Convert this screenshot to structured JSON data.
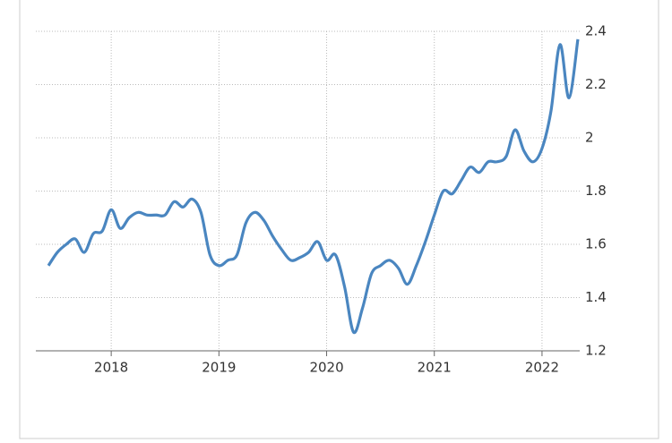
{
  "chart_data": {
    "type": "line",
    "x": [
      2017.417,
      2017.5,
      2017.583,
      2017.667,
      2017.75,
      2017.833,
      2017.917,
      2018,
      2018.083,
      2018.167,
      2018.25,
      2018.333,
      2018.417,
      2018.5,
      2018.583,
      2018.667,
      2018.75,
      2018.833,
      2018.917,
      2019,
      2019.083,
      2019.167,
      2019.25,
      2019.333,
      2019.417,
      2019.5,
      2019.583,
      2019.667,
      2019.75,
      2019.833,
      2019.917,
      2020,
      2020.083,
      2020.167,
      2020.25,
      2020.333,
      2020.417,
      2020.5,
      2020.583,
      2020.667,
      2020.75,
      2020.833,
      2020.917,
      2021,
      2021.083,
      2021.167,
      2021.25,
      2021.333,
      2021.417,
      2021.5,
      2021.583,
      2021.667,
      2021.75,
      2021.833,
      2021.917,
      2022,
      2022.083,
      2022.167,
      2022.25,
      2022.333
    ],
    "series": [
      {
        "color": "#4a86c0",
        "values": [
          1.52,
          1.57,
          1.6,
          1.62,
          1.57,
          1.64,
          1.65,
          1.73,
          1.66,
          1.7,
          1.72,
          1.71,
          1.71,
          1.71,
          1.76,
          1.74,
          1.77,
          1.72,
          1.56,
          1.52,
          1.54,
          1.56,
          1.68,
          1.72,
          1.69,
          1.63,
          1.58,
          1.54,
          1.55,
          1.57,
          1.61,
          1.54,
          1.56,
          1.44,
          1.27,
          1.36,
          1.49,
          1.52,
          1.54,
          1.51,
          1.45,
          1.52,
          1.61,
          1.71,
          1.8,
          1.79,
          1.84,
          1.89,
          1.87,
          1.91,
          1.91,
          1.93,
          2.03,
          1.95,
          1.91,
          1.96,
          2.1,
          2.35,
          2.15,
          2.37
        ]
      }
    ],
    "xlim": [
      2017.3,
      2022.35
    ],
    "xticks": [
      2018,
      2019,
      2020,
      2021,
      2022
    ],
    "ylim": [
      1.2,
      2.4
    ],
    "yticks": [
      1.2,
      1.4,
      1.6,
      1.8,
      2,
      2.2,
      2.4
    ],
    "grid": true
  }
}
